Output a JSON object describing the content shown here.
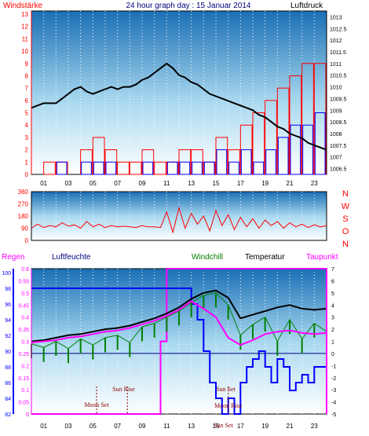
{
  "colors": {
    "wind": "#ff0000",
    "gust": "#0000ff",
    "pressure": "#000000",
    "direction": "#ff0000",
    "rain": "#ff00ff",
    "humidity": "#0000ff",
    "windchill": "#008000",
    "temperature": "#000000",
    "dewpoint": "#ff00ff",
    "frame": "#000000",
    "background_top": "#1a6fb5",
    "background_bottom": "#ffffff"
  },
  "chart_data": [
    {
      "type": "line",
      "title": "24 hour graph day : 15 Januar 2014",
      "left_label": "Windstärke",
      "right_label": "Luftdruck",
      "left_ticks": [
        "0",
        "1",
        "2",
        "3",
        "4",
        "5",
        "6",
        "7",
        "8",
        "9",
        "10",
        "11",
        "12",
        "13"
      ],
      "right_ticks": [
        "1006.5",
        "1007",
        "1007.5",
        "1008",
        "1008.5",
        "1009",
        "1009.5",
        "1010",
        "1010.5",
        "1011",
        "1011.5",
        "1012",
        "1012.5",
        "1013"
      ],
      "x_ticks": [
        "01",
        "03",
        "05",
        "07",
        "09",
        "11",
        "13",
        "15",
        "17",
        "19",
        "21",
        "23"
      ],
      "x_range": [
        0,
        24
      ],
      "left_range": [
        0,
        13
      ],
      "right_range": [
        1006.25,
        1013.25
      ],
      "series": [
        {
          "name": "Luftdruck",
          "axis": "right",
          "x": [
            0,
            0.5,
            1,
            1.5,
            2,
            2.5,
            3,
            3.5,
            4,
            4.5,
            5,
            5.5,
            6,
            6.5,
            7,
            7.5,
            8,
            8.5,
            9,
            9.5,
            10,
            10.5,
            11,
            11.5,
            12,
            12.5,
            13,
            13.5,
            14,
            14.5,
            15,
            15.5,
            16,
            16.5,
            17,
            17.5,
            18,
            18.5,
            19,
            19.5,
            20,
            20.5,
            21,
            21.5,
            22,
            22.5,
            23,
            23.5,
            24
          ],
          "values": [
            1009.1,
            1009.2,
            1009.3,
            1009.3,
            1009.3,
            1009.5,
            1009.7,
            1009.9,
            1010.0,
            1009.8,
            1009.7,
            1009.8,
            1009.9,
            1010.0,
            1009.9,
            1010.0,
            1010.0,
            1010.1,
            1010.3,
            1010.4,
            1010.6,
            1010.8,
            1011.0,
            1010.8,
            1010.5,
            1010.4,
            1010.2,
            1010.1,
            1009.9,
            1009.7,
            1009.6,
            1009.5,
            1009.4,
            1009.3,
            1009.2,
            1009.1,
            1009.0,
            1008.8,
            1008.7,
            1008.5,
            1008.3,
            1008.2,
            1008.0,
            1007.9,
            1007.8,
            1007.6,
            1007.5,
            1007.4,
            1007.3
          ]
        },
        {
          "name": "Windstärke",
          "axis": "left",
          "x": [
            0,
            1,
            2,
            3,
            4,
            5,
            6,
            7,
            8,
            9,
            10,
            11,
            12,
            13,
            14,
            15,
            16,
            17,
            18,
            19,
            20,
            21,
            22,
            23,
            24
          ],
          "values": [
            0,
            1,
            1,
            0,
            2,
            3,
            2,
            1,
            1,
            2,
            1,
            1,
            2,
            2,
            1,
            3,
            2,
            4,
            5,
            6,
            7,
            8,
            9,
            9,
            8
          ]
        },
        {
          "name": "Böen",
          "axis": "left",
          "x": [
            0,
            1,
            2,
            3,
            4,
            5,
            6,
            7,
            8,
            9,
            10,
            11,
            12,
            13,
            14,
            15,
            16,
            17,
            18,
            19,
            20,
            21,
            22,
            23,
            24
          ],
          "values": [
            0,
            0,
            1,
            0,
            1,
            1,
            1,
            0,
            0,
            1,
            0,
            1,
            1,
            1,
            1,
            2,
            1,
            2,
            1,
            2,
            3,
            4,
            4,
            5,
            4
          ]
        }
      ]
    },
    {
      "type": "line",
      "left_ticks": [
        "0",
        "90",
        "180",
        "270",
        "360"
      ],
      "right_ticks": [
        "N",
        "W",
        "S",
        "O",
        "N"
      ],
      "x_range": [
        0,
        24
      ],
      "y_range": [
        0,
        360
      ],
      "series": [
        {
          "name": "Windrichtung",
          "x": [
            0,
            0.5,
            1,
            1.5,
            2,
            2.5,
            3,
            3.5,
            4,
            4.5,
            5,
            5.5,
            6,
            6.5,
            7,
            7.5,
            8,
            8.5,
            9,
            9.5,
            10,
            10.5,
            11,
            11.5,
            12,
            12.5,
            13,
            13.5,
            14,
            14.5,
            15,
            15.5,
            16,
            16.5,
            17,
            17.5,
            18,
            18.5,
            19,
            19.5,
            20,
            20.5,
            21,
            21.5,
            22,
            22.5,
            23,
            23.5,
            24
          ],
          "values": [
            90,
            120,
            95,
            110,
            100,
            130,
            105,
            115,
            90,
            140,
            100,
            120,
            95,
            110,
            100,
            105,
            100,
            95,
            110,
            100,
            100,
            95,
            210,
            60,
            240,
            90,
            200,
            120,
            180,
            70,
            220,
            110,
            190,
            80,
            170,
            100,
            160,
            90,
            150,
            110,
            140,
            90,
            130,
            100,
            120,
            95,
            115,
            100,
            110
          ]
        }
      ]
    },
    {
      "type": "line",
      "labels": [
        "Regen",
        "Luftfeuchte",
        "Windchill",
        "Temperatur",
        "Taupunkt"
      ],
      "left_ticks_rain": [
        "0",
        "0.05",
        "0.1",
        "0.15",
        "0.2",
        "0.25",
        "0.3",
        "0.35",
        "0.4",
        "0.45",
        "0.5",
        "0.55",
        "0.6"
      ],
      "left_ticks_humidity": [
        "82",
        "84",
        "86",
        "88",
        "90",
        "92",
        "94",
        "96",
        "98",
        "100"
      ],
      "right_ticks": [
        "-5",
        "-4",
        "-3",
        "-2",
        "-1",
        "0",
        "1",
        "2",
        "3",
        "4",
        "5",
        "6",
        "7"
      ],
      "x_ticks": [
        "01",
        "03",
        "05",
        "07",
        "09",
        "11",
        "13",
        "15",
        "17",
        "19",
        "21",
        "23"
      ],
      "x_range": [
        0,
        24
      ],
      "rain_range": [
        0,
        0.6
      ],
      "humidity_range": [
        82,
        100.5
      ],
      "temp_range": [
        -5,
        7
      ],
      "annotations": [
        "Sun Rise",
        "Moon Set",
        "Sun Set",
        "Moon Rise",
        "Sun Set"
      ],
      "series": [
        {
          "name": "Temperatur",
          "axis": "right",
          "x": [
            0,
            1,
            2,
            3,
            4,
            5,
            6,
            7,
            8,
            9,
            10,
            11,
            12,
            13,
            14,
            15,
            16,
            17,
            18,
            19,
            20,
            21,
            22,
            23,
            24
          ],
          "values": [
            1.0,
            1.1,
            1.3,
            1.5,
            1.6,
            1.8,
            2.0,
            2.1,
            2.3,
            2.6,
            2.9,
            3.3,
            3.8,
            4.5,
            5.0,
            5.2,
            4.6,
            2.9,
            3.2,
            3.5,
            3.8,
            4.0,
            3.7,
            3.6,
            3.7
          ]
        },
        {
          "name": "Taupunkt",
          "axis": "right",
          "x": [
            0,
            1,
            2,
            3,
            4,
            5,
            6,
            7,
            8,
            9,
            10,
            11,
            12,
            13,
            14,
            15,
            16,
            17,
            18,
            19,
            20,
            21,
            22,
            23,
            24
          ],
          "values": [
            0.9,
            1.0,
            1.1,
            1.3,
            1.4,
            1.6,
            1.8,
            1.9,
            2.1,
            2.4,
            2.7,
            3.1,
            3.6,
            4.3,
            3.7,
            3.0,
            1.3,
            0.7,
            1.1,
            1.6,
            1.8,
            1.9,
            1.7,
            1.6,
            1.7
          ]
        },
        {
          "name": "Windchill",
          "axis": "right",
          "x": [
            0,
            1,
            2,
            3,
            4,
            5,
            6,
            7,
            8,
            9,
            10,
            11,
            12,
            13,
            14,
            15,
            16,
            17,
            18,
            19,
            20,
            21,
            22,
            23,
            24
          ],
          "values": [
            0.8,
            0.5,
            1.0,
            0.4,
            1.2,
            0.7,
            1.3,
            1.5,
            0.9,
            2.2,
            2.5,
            3.0,
            3.5,
            4.2,
            4.8,
            5.0,
            4.0,
            1.5,
            2.4,
            3.0,
            1.0,
            2.8,
            1.2,
            2.5,
            1.8
          ]
        },
        {
          "name": "Luftfeuchte",
          "axis": "left",
          "x": [
            0,
            2,
            4,
            6,
            8,
            10,
            12,
            13,
            13.5,
            14,
            14.5,
            15,
            15.5,
            16,
            16.5,
            17,
            17.5,
            18,
            18.5,
            19,
            19.5,
            20,
            20.5,
            21,
            21.5,
            22,
            22.5,
            23,
            24
          ],
          "values": [
            98,
            98,
            98,
            98,
            98,
            98,
            98,
            96,
            94,
            90,
            86,
            84,
            82,
            84,
            82,
            86,
            88,
            89,
            90,
            88,
            86,
            89,
            88,
            85,
            86,
            87,
            86,
            88,
            88
          ]
        },
        {
          "name": "Regen",
          "axis": "left",
          "x": [
            0,
            10.5,
            10.5,
            11,
            11,
            24
          ],
          "values": [
            0,
            0,
            0.3,
            0.3,
            0.6,
            0.6
          ]
        }
      ]
    }
  ]
}
